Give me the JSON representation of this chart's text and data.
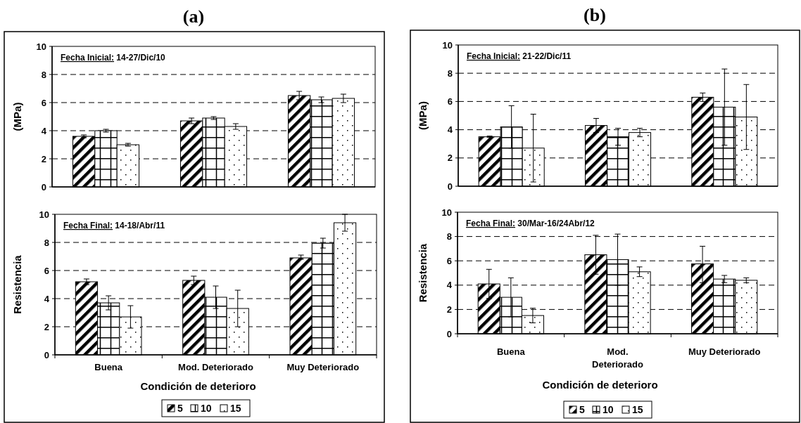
{
  "chart_data": [
    {
      "type": "bar",
      "title": "(a)",
      "ylabel": "(MPa)",
      "categories": [
        null,
        null,
        null
      ],
      "tick_labels": "y",
      "ylim": [
        0,
        10
      ],
      "yticks": [
        0,
        2,
        4,
        6,
        8,
        10
      ],
      "grid": "y",
      "annotations": [
        "Fecha Inicial: 14-27/Dic/10"
      ],
      "series": [
        {
          "color": "#000000",
          "values": [
            3.6,
            4.7,
            6.5
          ],
          "errors": [
            [
              3.5,
              3.7
            ],
            [
              4.5,
              4.9
            ],
            [
              6.2,
              6.8
            ]
          ]
        },
        {
          "color": "#000000",
          "values": [
            4.0,
            4.9,
            6.2
          ],
          "errors": [
            [
              3.9,
              4.1
            ],
            [
              4.8,
              5.0
            ],
            [
              6.0,
              6.4
            ]
          ]
        },
        {
          "color": "#000000",
          "values": [
            3.0,
            4.3,
            6.3
          ],
          "errors": [
            [
              2.9,
              3.1
            ],
            [
              4.1,
              4.5
            ],
            [
              6.0,
              6.6
            ]
          ]
        }
      ]
    },
    {
      "type": "bar",
      "ylabel": "Resistencia",
      "xlabel": "Condición de deterioro",
      "categories": [
        "Buena",
        "Mod. Deteriorado",
        "Muy Deteriorado"
      ],
      "ylim": [
        0,
        10
      ],
      "yticks": [
        0,
        2,
        4,
        6,
        8,
        10
      ],
      "grid": "y",
      "legend": "bottom",
      "annotations": [
        "Fecha Final: 14-18/Abr/11"
      ],
      "series": [
        {
          "name": "5",
          "color": "#000000",
          "values": [
            5.2,
            5.3,
            6.9
          ],
          "errors": [
            [
              5.0,
              5.4
            ],
            [
              5.0,
              5.6
            ],
            [
              6.8,
              7.1
            ]
          ]
        },
        {
          "name": "10",
          "color": "#000000",
          "values": [
            3.7,
            4.1,
            7.95
          ],
          "errors": [
            [
              3.2,
              4.2
            ],
            [
              3.3,
              4.9
            ],
            [
              7.6,
              8.3
            ]
          ]
        },
        {
          "name": "15",
          "color": "#000000",
          "values": [
            2.7,
            3.3,
            9.4
          ],
          "errors": [
            [
              1.9,
              3.5
            ],
            [
              2.0,
              4.6
            ],
            [
              8.8,
              10.0
            ]
          ]
        }
      ]
    },
    {
      "type": "bar",
      "title": "(b)",
      "ylabel": "(MPa)",
      "categories": [
        null,
        null,
        null
      ],
      "tick_labels": "y",
      "ylim": [
        0,
        10
      ],
      "yticks": [
        0,
        2,
        4,
        6,
        8,
        10
      ],
      "grid": "y",
      "annotations": [
        "Fecha Inicial: 21-22/Dic/11"
      ],
      "series": [
        {
          "color": "#000000",
          "values": [
            3.5,
            4.3,
            6.3
          ],
          "errors": [
            [
              3.45,
              3.55
            ],
            [
              3.8,
              4.8
            ],
            [
              6.0,
              6.6
            ]
          ]
        },
        {
          "color": "#000000",
          "values": [
            4.2,
            3.5,
            5.6
          ],
          "errors": [
            [
              2.7,
              5.7
            ],
            [
              2.9,
              4.1
            ],
            [
              2.9,
              8.3
            ]
          ]
        },
        {
          "color": "#000000",
          "values": [
            2.7,
            3.8,
            4.9
          ],
          "errors": [
            [
              0.3,
              5.1
            ],
            [
              3.5,
              4.1
            ],
            [
              2.6,
              7.2
            ]
          ]
        }
      ]
    },
    {
      "type": "bar",
      "ylabel": "Resistencia",
      "xlabel": "Condición de deterioro",
      "categories": [
        "Buena",
        "Mod. Deteriorado",
        "Muy Deteriorado"
      ],
      "ylim": [
        0,
        10
      ],
      "yticks": [
        0,
        2,
        4,
        6,
        8,
        10
      ],
      "grid": "y",
      "legend": "bottom",
      "annotations": [
        "Fecha Final: 30/Mar-16/24Abr/12"
      ],
      "series": [
        {
          "name": "5",
          "color": "#000000",
          "values": [
            4.1,
            6.5,
            5.75
          ],
          "errors": [
            [
              2.9,
              5.3
            ],
            [
              4.9,
              8.1
            ],
            [
              4.2,
              7.2
            ]
          ]
        },
        {
          "name": "10",
          "color": "#000000",
          "values": [
            3.0,
            6.1,
            4.5
          ],
          "errors": [
            [
              1.4,
              4.6
            ],
            [
              4.0,
              8.2
            ],
            [
              4.2,
              4.8
            ]
          ]
        },
        {
          "name": "15",
          "color": "#000000",
          "values": [
            1.5,
            5.1,
            4.4
          ],
          "errors": [
            [
              0.9,
              2.1
            ],
            [
              4.7,
              5.5
            ],
            [
              4.2,
              4.6
            ]
          ]
        }
      ]
    }
  ]
}
